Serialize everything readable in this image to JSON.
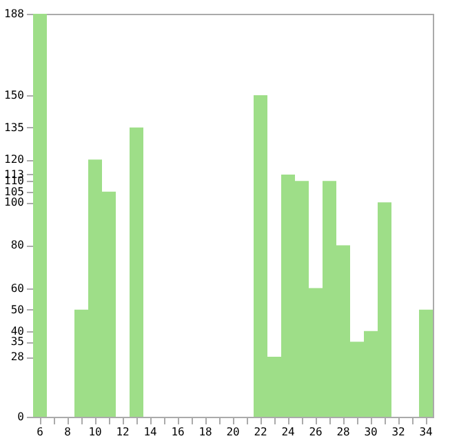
{
  "chart_data": {
    "type": "bar",
    "categories": [
      "6",
      null,
      "8",
      null,
      "10",
      null,
      "12",
      null,
      "14",
      null,
      "16",
      null,
      "18",
      null,
      "20",
      null,
      "22",
      null,
      "24",
      null,
      "26",
      null,
      "28",
      null,
      "30",
      null,
      "32",
      null,
      "34"
    ],
    "values": [
      188,
      0,
      0,
      50,
      120,
      105,
      0,
      135,
      0,
      0,
      0,
      0,
      0,
      0,
      0,
      0,
      150,
      28,
      113,
      110,
      60,
      110,
      80,
      35,
      40,
      100,
      0,
      0,
      50
    ],
    "color": "#9ede88",
    "ylim": [
      0,
      188
    ],
    "yticks": [
      0,
      28,
      35,
      40,
      50,
      60,
      80,
      100,
      105,
      110,
      113,
      120,
      135,
      150,
      188
    ],
    "grid": false
  }
}
